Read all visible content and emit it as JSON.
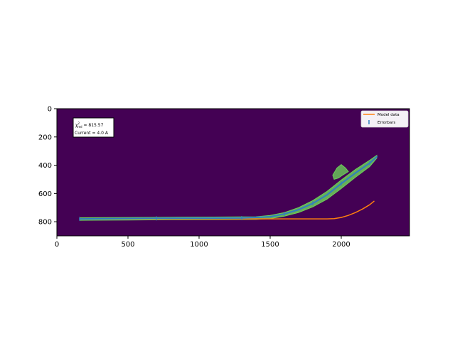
{
  "chart_data": {
    "type": "line",
    "title": "",
    "xlabel": "",
    "ylabel": "",
    "xlim": [
      0,
      2480
    ],
    "ylim": [
      900,
      0
    ],
    "y_inverted": true,
    "grid": false,
    "x_ticks": [
      0,
      500,
      1000,
      1500,
      2000
    ],
    "y_ticks": [
      0,
      200,
      400,
      600,
      800
    ],
    "background_color": "#440154",
    "annotation": {
      "chi_label": "χ",
      "chi_sup": "2",
      "chi_sub": "red",
      "chi_value": " = 815.57",
      "current": "Current = 4.0 A",
      "placement": "top-left"
    },
    "legend": {
      "placement": "top-right",
      "entries": [
        "Model data",
        "Errorbars"
      ]
    },
    "series": [
      {
        "name": "Model data",
        "color": "#ff7f0e",
        "x": [
          160,
          400,
          700,
          1000,
          1300,
          1600,
          1900,
          1950,
          2000,
          2050,
          2100,
          2150,
          2200,
          2230
        ],
        "y": [
          780,
          780,
          780,
          780,
          780,
          780,
          780,
          778,
          770,
          755,
          735,
          710,
          680,
          655
        ]
      },
      {
        "name": "Errorbars",
        "color": "#2f7fc1",
        "x": [
          160,
          400,
          700,
          1000,
          1300,
          1500,
          1600,
          1700,
          1800,
          1900,
          2000,
          2100,
          2200,
          2250
        ],
        "y": [
          780,
          778,
          776,
          775,
          774,
          765,
          745,
          715,
          670,
          610,
          530,
          455,
          385,
          340
        ]
      }
    ],
    "data_envelope": {
      "color": "#6cce59",
      "x": [
        160,
        500,
        800,
        1100,
        1400,
        1500,
        1600,
        1700,
        1800,
        1900,
        2000,
        2100,
        2200,
        2250
      ],
      "y_upper": [
        772,
        770,
        768,
        767,
        765,
        755,
        735,
        700,
        650,
        585,
        505,
        430,
        365,
        330
      ],
      "y_lower": [
        790,
        788,
        786,
        785,
        784,
        778,
        760,
        735,
        695,
        640,
        565,
        485,
        410,
        350
      ]
    },
    "blob": {
      "color": "#6cce59",
      "x": [
        1940,
        1970,
        2000,
        2030,
        2050,
        2010,
        1980,
        1950,
        1940
      ],
      "y": [
        470,
        420,
        395,
        420,
        445,
        470,
        490,
        500,
        470
      ]
    }
  }
}
